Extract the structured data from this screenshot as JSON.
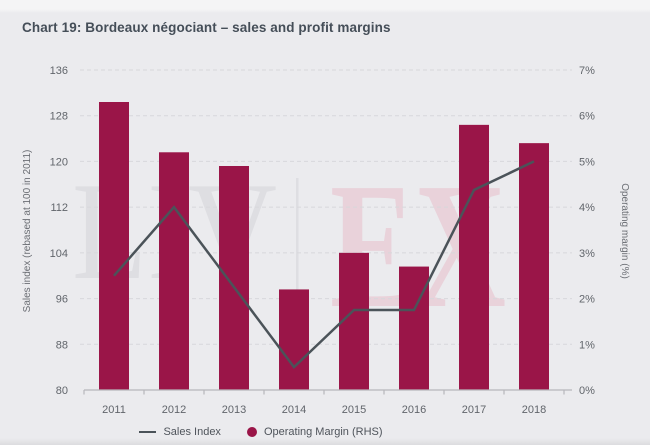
{
  "title": "Chart 19: Bordeaux négociant – sales and profit margins",
  "watermark": {
    "left": "LIV",
    "separator": "|",
    "right": "EX"
  },
  "legend": {
    "items": [
      {
        "label": "Sales Index",
        "marker": "line"
      },
      {
        "label": "Operating Margin (RHS)",
        "marker": "circle"
      }
    ]
  },
  "colors": {
    "background": "#ebebee",
    "bar": "#9a1548",
    "line": "#4b5359",
    "grid": "#d7d7db",
    "axis": "#b6b6bb",
    "tick_text": "#61656b",
    "title_text": "#454e58",
    "watermark_gray": "#dedee2",
    "watermark_pink": "#e9d2da"
  },
  "chart_data": {
    "type": "bar",
    "subtype": "bar-and-line-combo",
    "title": "Chart 19: Bordeaux négociant – sales and profit margins",
    "categories": [
      "2011",
      "2012",
      "2013",
      "2014",
      "2015",
      "2016",
      "2017",
      "2018"
    ],
    "series": [
      {
        "name": "Sales Index",
        "type": "line",
        "axis": "left",
        "values": [
          100,
          112,
          98,
          84,
          94,
          94,
          115,
          120
        ]
      },
      {
        "name": "Operating Margin (RHS)",
        "type": "bar",
        "axis": "right",
        "values": [
          6.3,
          5.2,
          4.9,
          2.2,
          3.0,
          2.7,
          5.8,
          5.4
        ]
      }
    ],
    "left_axis": {
      "label": "Sales index (rebased at 100 in 2011)",
      "min": 80,
      "max": 136,
      "ticks": [
        136,
        128,
        120,
        112,
        104,
        96,
        88,
        80
      ]
    },
    "right_axis": {
      "label": "Operating margin (%)",
      "min": 0,
      "max": 7,
      "tick_values": [
        7,
        6,
        5,
        4,
        3,
        2,
        1,
        0
      ],
      "tick_labels": [
        "7%",
        "6%",
        "5%",
        "4%",
        "3%",
        "2%",
        "1%",
        "0%"
      ]
    },
    "grid": "horizontal-dashed",
    "legend_position": "bottom"
  }
}
